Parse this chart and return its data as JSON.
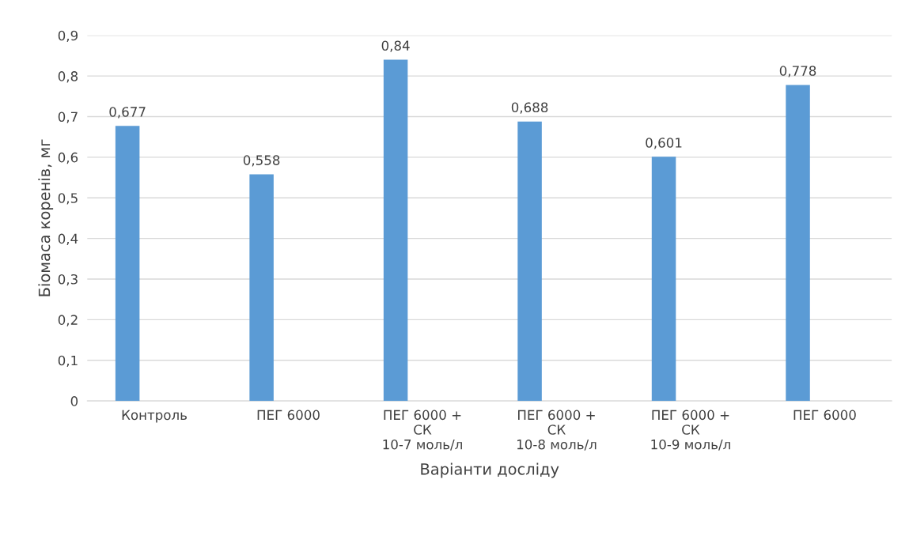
{
  "chart_data": {
    "type": "bar",
    "xlabel": "Варіанти досліду",
    "ylabel": "Біомаса коренів, мг",
    "categories": [
      "Контроль",
      "ПЕГ 6000",
      "ПЕГ 6000 +\nСК\n10-7 моль/л",
      "ПЕГ 6000 +\nСК\n10-8 моль/л",
      "ПЕГ 6000 +\nСК\n10-9 моль/л",
      "ПЕГ 6000"
    ],
    "values": [
      0.677,
      0.558,
      0.84,
      0.688,
      0.601,
      0.778
    ],
    "value_labels": [
      "0,677",
      "0,558",
      "0,84",
      "0,688",
      "0,601",
      "0,778"
    ],
    "color": "#5b9bd5",
    "ylim": [
      0,
      0.9
    ],
    "yticks": [
      {
        "value": 0,
        "label": "0"
      },
      {
        "value": 0.1,
        "label": "0,1"
      },
      {
        "value": 0.2,
        "label": "0,2"
      },
      {
        "value": 0.3,
        "label": "0,3"
      },
      {
        "value": 0.4,
        "label": "0,4"
      },
      {
        "value": 0.5,
        "label": "0,5"
      },
      {
        "value": 0.6,
        "label": "0,6"
      },
      {
        "value": 0.7,
        "label": "0,7"
      },
      {
        "value": 0.8,
        "label": "0,8"
      },
      {
        "value": 0.9,
        "label": "0,9"
      }
    ],
    "grid": "y",
    "legend": false
  }
}
